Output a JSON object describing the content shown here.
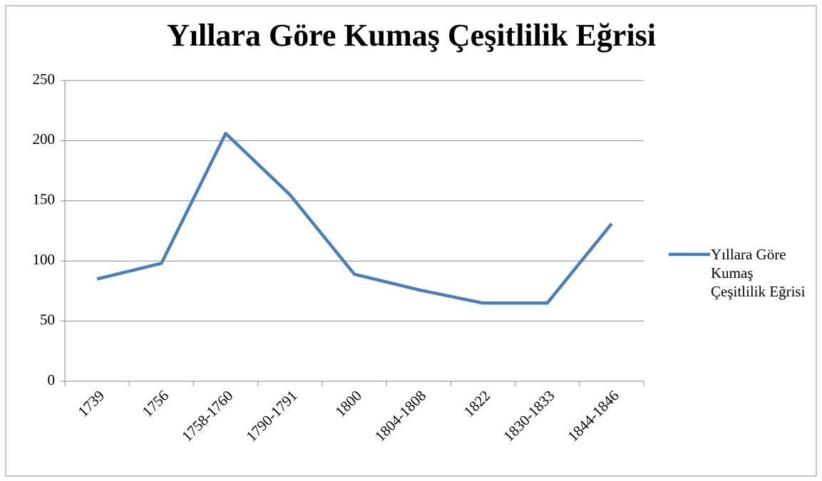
{
  "chart_data": {
    "type": "line",
    "title": "Yıllara Göre Kumaş Çeşitlilik Eğrisi",
    "categories": [
      "1739",
      "1756",
      "1758-1760",
      "1790-1791",
      "1800",
      "1804-1808",
      "1822",
      "1830-1833",
      "1844-1846"
    ],
    "series": [
      {
        "name": "Yıllara Göre Kumaş Çeşitlilik Eğrisi",
        "color": "#4a7ebb",
        "values": [
          85,
          98,
          206,
          155,
          89,
          76,
          65,
          65,
          131
        ]
      }
    ],
    "ylim": [
      0,
      250
    ],
    "yticks": [
      0,
      50,
      100,
      150,
      200,
      250
    ],
    "grid": true,
    "legend": "right"
  }
}
